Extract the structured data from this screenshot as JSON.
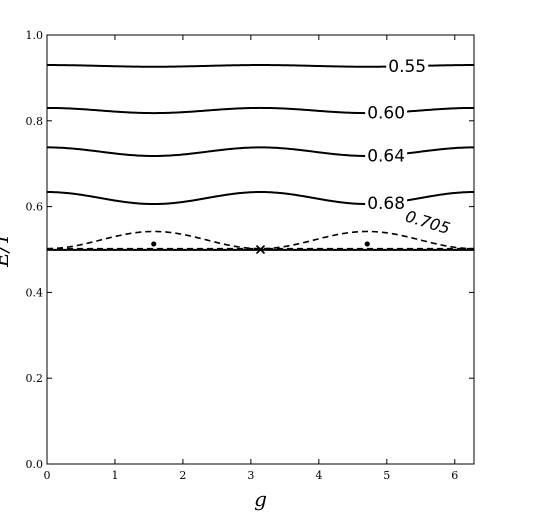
{
  "chart_data": {
    "type": "line",
    "xlabel": "g",
    "ylabel": "E/T",
    "xlim": [
      0,
      6.283
    ],
    "ylim": [
      0,
      1.0
    ],
    "x_ticks": [
      "0",
      "1",
      "2",
      "3",
      "4",
      "5",
      "6"
    ],
    "y_ticks": [
      "0.0",
      "0.2",
      "0.4",
      "0.6",
      "0.8",
      "1.0"
    ],
    "grid": false,
    "series": [
      {
        "name": "0.55",
        "style": "solid",
        "base": 0.928,
        "amp": 0.002,
        "shape": "cos2",
        "label_x": 5.3
      },
      {
        "name": "0.60",
        "style": "solid",
        "base": 0.824,
        "amp": 0.006,
        "shape": "cos2",
        "label_x": 4.99
      },
      {
        "name": "0.64",
        "style": "solid",
        "base": 0.728,
        "amp": 0.01,
        "shape": "cos2",
        "label_x": 4.99
      },
      {
        "name": "0.68",
        "style": "solid",
        "base": 0.62,
        "amp": 0.014,
        "shape": "cos2",
        "label_x": 4.99
      },
      {
        "name": "0.705",
        "style": "dashed",
        "base": 0.502,
        "amp": 0.04,
        "shape": "sin2",
        "label_x": 5.6
      },
      {
        "name": "",
        "style": "dashed",
        "base": 0.502,
        "amp": 0.0,
        "shape": "flat"
      },
      {
        "name": "",
        "style": "solid",
        "base": 0.499,
        "amp": 0.0,
        "shape": "flat"
      }
    ],
    "markers": [
      {
        "type": "dot",
        "x": 1.571,
        "y": 0.513
      },
      {
        "type": "dot",
        "x": 4.712,
        "y": 0.513
      },
      {
        "type": "cross",
        "x": 3.1416,
        "y": 0.5
      }
    ]
  }
}
